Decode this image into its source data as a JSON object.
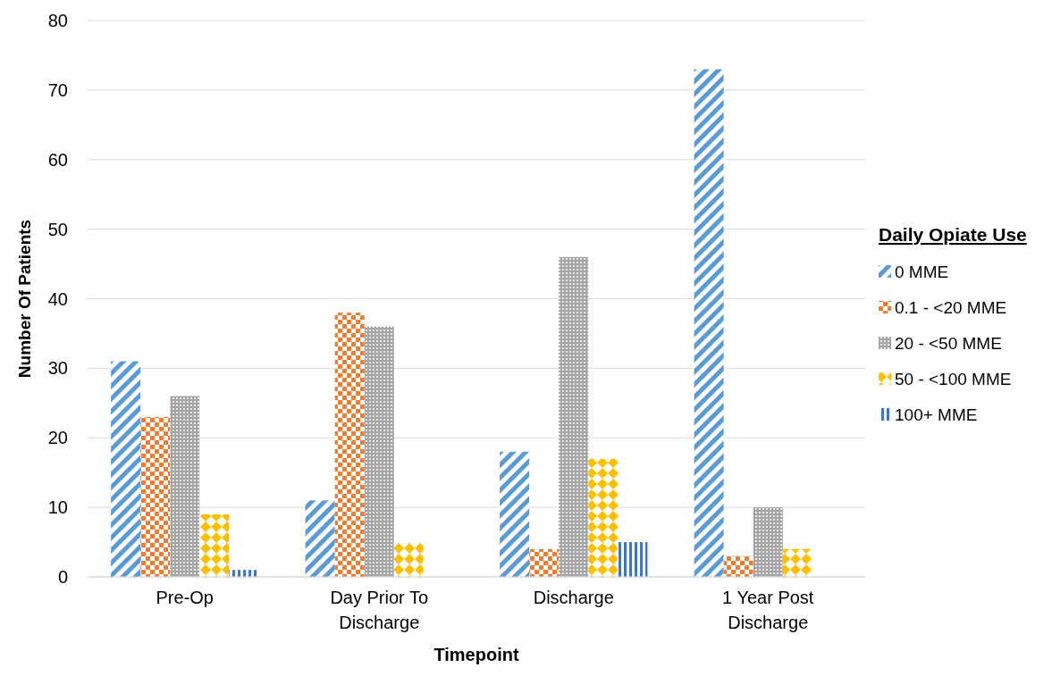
{
  "chart_data": {
    "type": "bar",
    "xlabel": "Timepoint",
    "ylabel": "Number Of Patients",
    "legend_title": "Daily Opiate Use",
    "categories": [
      "Pre-Op",
      "Day Prior To Discharge",
      "Discharge",
      "1 Year Post Discharge"
    ],
    "series": [
      {
        "name": "0 MME",
        "color": "#5b9bd5",
        "values": [
          31,
          11,
          18,
          73
        ]
      },
      {
        "name": "0.1 - <20 MME",
        "color": "#ed7d31",
        "values": [
          23,
          38,
          4,
          3
        ]
      },
      {
        "name": "20 - <50 MME",
        "color": "#a5a5a5",
        "values": [
          26,
          36,
          46,
          10
        ]
      },
      {
        "name": "50 - <100 MME",
        "color": "#ffc000",
        "values": [
          9,
          5,
          17,
          4
        ]
      },
      {
        "name": "100+ MME",
        "color": "#4472c4",
        "values": [
          1,
          0,
          5,
          0
        ]
      }
    ],
    "ylim": [
      0,
      80
    ],
    "yticks": [
      0,
      10,
      20,
      30,
      40,
      50,
      60,
      70,
      80
    ],
    "grid": "y",
    "legend": "right"
  }
}
